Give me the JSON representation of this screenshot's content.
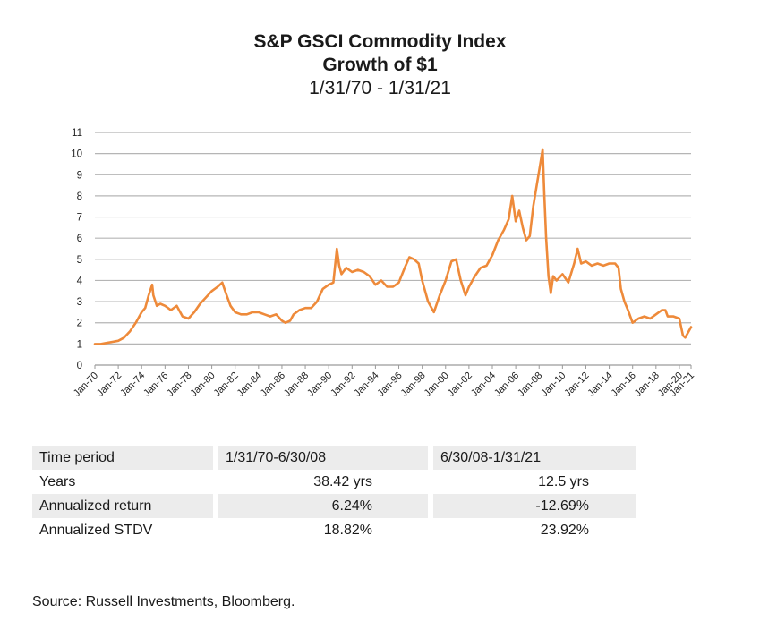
{
  "chart_data": {
    "type": "line",
    "title": "S&P GSCI Commodity Index",
    "subtitle_line1": "Growth of $1",
    "subtitle_line2": "1/31/70 - 1/31/21",
    "xlabel": "",
    "ylabel": "",
    "ylim": [
      0,
      11
    ],
    "yticks": [
      0,
      1,
      2,
      3,
      4,
      5,
      6,
      7,
      8,
      9,
      10,
      11
    ],
    "xticks": [
      "Jan-70",
      "Jan-72",
      "Jan-74",
      "Jan-76",
      "Jan-78",
      "Jan-80",
      "Jan-82",
      "Jan-84",
      "Jan-86",
      "Jan-88",
      "Jan-90",
      "Jan-92",
      "Jan-94",
      "Jan-96",
      "Jan-98",
      "Jan-00",
      "Jan-02",
      "Jan-04",
      "Jan-06",
      "Jan-08",
      "Jan-10",
      "Jan-12",
      "Jan-14",
      "Jan-16",
      "Jan-18",
      "Jan-20",
      "Jan-21"
    ],
    "grid": true,
    "legend": "none",
    "line_color": "#ee8a3a",
    "series": [
      {
        "x": [
          1970.0,
          1970.5,
          1971.0,
          1971.5,
          1972.0,
          1972.5,
          1973.0,
          1973.5,
          1974.0,
          1974.3,
          1974.6,
          1974.9,
          1975.0,
          1975.3,
          1975.6,
          1976.0,
          1976.5,
          1977.0,
          1977.5,
          1978.0,
          1978.5,
          1979.0,
          1979.5,
          1980.0,
          1980.5,
          1980.9,
          1981.2,
          1981.6,
          1982.0,
          1982.5,
          1983.0,
          1983.5,
          1984.0,
          1984.5,
          1985.0,
          1985.5,
          1986.0,
          1986.3,
          1986.7,
          1987.0,
          1987.5,
          1988.0,
          1988.5,
          1989.0,
          1989.5,
          1990.0,
          1990.4,
          1990.7,
          1990.9,
          1991.1,
          1991.5,
          1992.0,
          1992.5,
          1993.0,
          1993.5,
          1994.0,
          1994.5,
          1995.0,
          1995.5,
          1996.0,
          1996.5,
          1996.9,
          1997.3,
          1997.7,
          1998.0,
          1998.5,
          1999.0,
          1999.5,
          2000.0,
          2000.5,
          2000.9,
          2001.3,
          2001.7,
          2002.0,
          2002.5,
          2003.0,
          2003.5,
          2004.0,
          2004.5,
          2005.0,
          2005.4,
          2005.7,
          2006.0,
          2006.3,
          2006.6,
          2006.9,
          2007.2,
          2007.5,
          2007.8,
          2008.1,
          2008.3,
          2008.45,
          2008.6,
          2008.8,
          2009.0,
          2009.2,
          2009.5,
          2010.0,
          2010.5,
          2011.0,
          2011.3,
          2011.6,
          2012.0,
          2012.5,
          2013.0,
          2013.5,
          2014.0,
          2014.5,
          2014.8,
          2015.0,
          2015.3,
          2015.6,
          2016.0,
          2016.5,
          2017.0,
          2017.5,
          2018.0,
          2018.5,
          2018.8,
          2019.0,
          2019.5,
          2020.0,
          2020.3,
          2020.5,
          2020.8,
          2021.0
        ],
        "y": [
          1.0,
          1.0,
          1.05,
          1.1,
          1.15,
          1.3,
          1.6,
          2.0,
          2.5,
          2.7,
          3.3,
          3.8,
          3.3,
          2.8,
          2.9,
          2.8,
          2.6,
          2.8,
          2.3,
          2.2,
          2.5,
          2.9,
          3.2,
          3.5,
          3.7,
          3.9,
          3.4,
          2.8,
          2.5,
          2.4,
          2.4,
          2.5,
          2.5,
          2.4,
          2.3,
          2.4,
          2.1,
          2.0,
          2.1,
          2.4,
          2.6,
          2.7,
          2.7,
          3.0,
          3.6,
          3.8,
          3.9,
          5.5,
          4.7,
          4.3,
          4.6,
          4.4,
          4.5,
          4.4,
          4.2,
          3.8,
          4.0,
          3.7,
          3.7,
          3.9,
          4.6,
          5.1,
          5.0,
          4.8,
          4.0,
          3.0,
          2.5,
          3.3,
          4.0,
          4.9,
          5.0,
          4.0,
          3.3,
          3.7,
          4.2,
          4.6,
          4.7,
          5.2,
          5.9,
          6.4,
          6.9,
          8.0,
          6.8,
          7.3,
          6.5,
          5.9,
          6.1,
          7.5,
          8.5,
          9.5,
          10.2,
          8.0,
          6.0,
          4.2,
          3.4,
          4.2,
          4.0,
          4.3,
          3.9,
          4.8,
          5.5,
          4.8,
          4.9,
          4.7,
          4.8,
          4.7,
          4.8,
          4.8,
          4.6,
          3.6,
          3.0,
          2.6,
          2.0,
          2.2,
          2.3,
          2.2,
          2.4,
          2.6,
          2.6,
          2.3,
          2.3,
          2.2,
          1.4,
          1.3,
          1.6,
          1.8
        ]
      }
    ]
  },
  "table": {
    "headers": [
      "Time period",
      "1/31/70-6/30/08",
      "6/30/08-1/31/21"
    ],
    "rows": [
      [
        "Years",
        "38.42 yrs",
        "12.5 yrs"
      ],
      [
        "Annualized return",
        "6.24%",
        "-12.69%"
      ],
      [
        "Annualized STDV",
        "18.82%",
        "23.92%"
      ]
    ]
  },
  "source": "Source: Russell Investments, Bloomberg."
}
